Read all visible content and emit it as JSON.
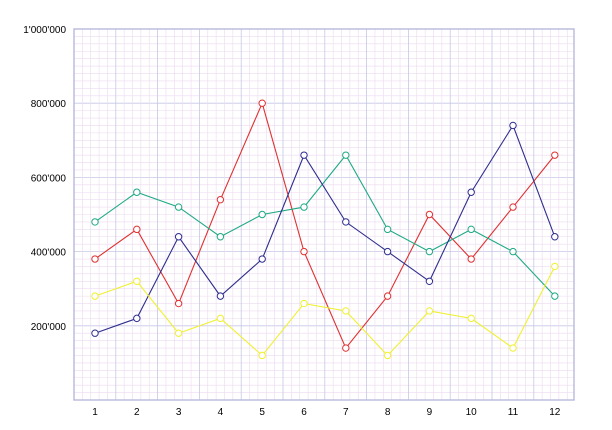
{
  "chart_data": {
    "type": "line",
    "title": "",
    "xlabel": "",
    "ylabel": "",
    "categories": [
      "1",
      "2",
      "3",
      "4",
      "5",
      "6",
      "7",
      "8",
      "9",
      "10",
      "11",
      "12"
    ],
    "ylim": [
      0,
      1000000
    ],
    "y_ticks": [
      200000,
      400000,
      600000,
      800000,
      1000000
    ],
    "y_tick_labels": [
      "200'000",
      "400'000",
      "600'000",
      "800'000",
      "1'000'000"
    ],
    "grid": true,
    "legend": "none",
    "series": [
      {
        "color": "#e03030",
        "values": [
          380000,
          460000,
          260000,
          540000,
          800000,
          400000,
          140000,
          280000,
          500000,
          380000,
          520000,
          660000
        ]
      },
      {
        "color": "#1faa84",
        "values": [
          480000,
          560000,
          520000,
          440000,
          500000,
          520000,
          660000,
          460000,
          400000,
          460000,
          400000,
          280000
        ]
      },
      {
        "color": "#2e2e8e",
        "values": [
          180000,
          220000,
          440000,
          280000,
          380000,
          660000,
          480000,
          400000,
          320000,
          560000,
          740000,
          440000
        ]
      },
      {
        "color": "#f0f030",
        "values": [
          280000,
          320000,
          180000,
          220000,
          120000,
          260000,
          240000,
          120000,
          240000,
          220000,
          140000,
          360000
        ]
      }
    ]
  }
}
